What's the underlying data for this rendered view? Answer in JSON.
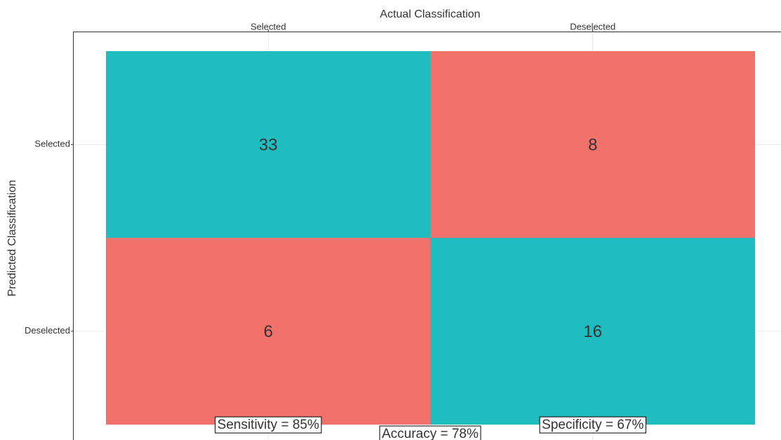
{
  "chart_data": {
    "type": "confusion-matrix",
    "x_label": "Actual Classification",
    "y_label": "Predicted Classification",
    "x_categories": [
      "Selected",
      "Deselected"
    ],
    "y_categories": [
      "Selected",
      "Deselected"
    ],
    "values": [
      [
        33,
        8
      ],
      [
        6,
        16
      ]
    ],
    "colors": {
      "diagonal": "#1fbcc0",
      "off_diagonal": "#f1726b"
    },
    "grid": true,
    "annotations": [
      "Sensitivity = 85%",
      "Accuracy = 78%",
      "Specificity = 67%"
    ]
  }
}
